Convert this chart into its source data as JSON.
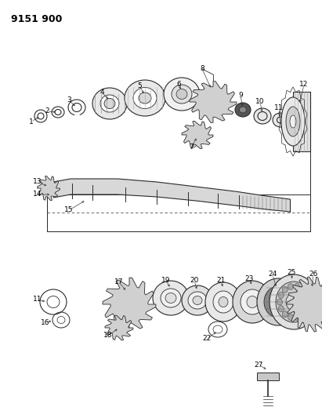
{
  "title": "9151 900",
  "bg_color": "#ffffff",
  "lc": "#2a2a2a",
  "fig_width": 4.11,
  "fig_height": 5.33,
  "dpi": 100,
  "pw": 411,
  "ph": 533
}
